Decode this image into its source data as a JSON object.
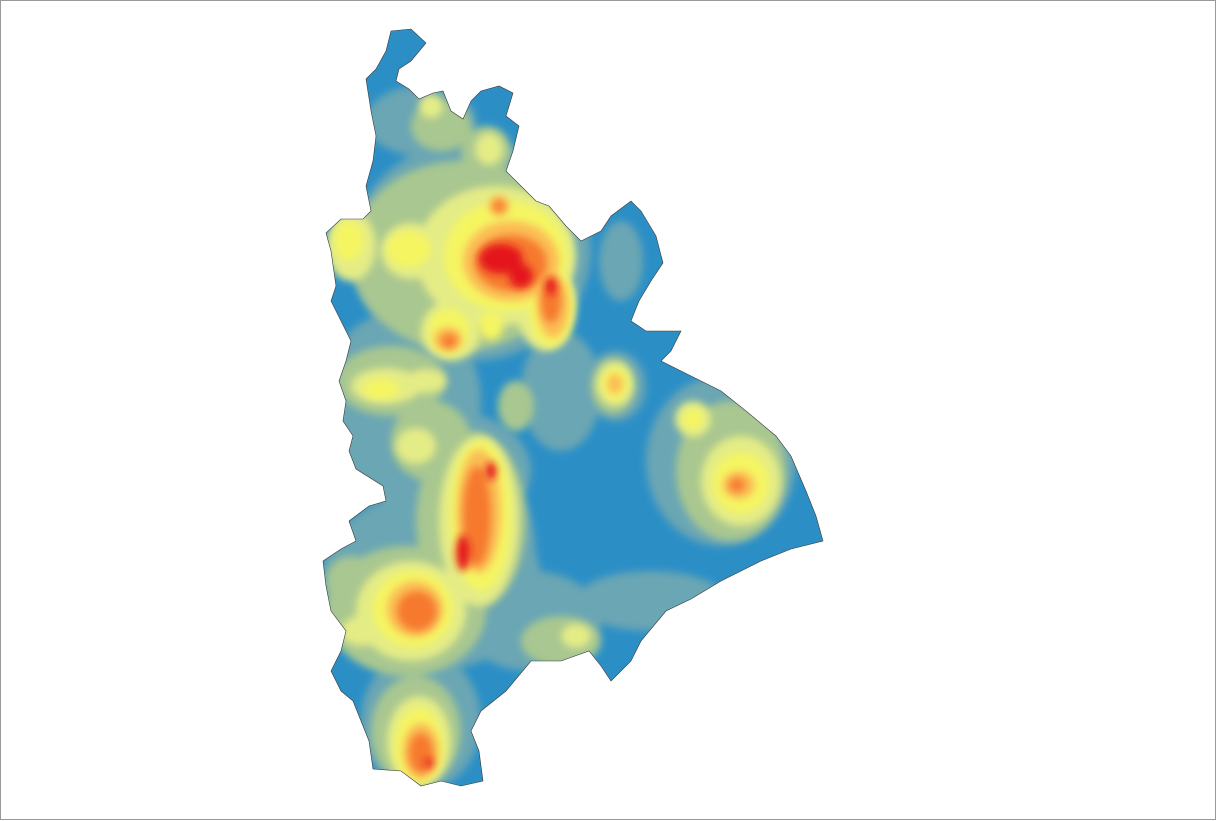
{
  "map": {
    "style": "density-heatmap",
    "palette": {
      "low": "#2b8fc6",
      "low_mid": "#6aa6b4",
      "mid": "#a9c790",
      "mid_high": "#e4ec86",
      "high": "#f5f562",
      "very_high": "#fbbd54",
      "peak_low": "#f6792d",
      "peak": "#e4161b"
    },
    "background": "#ffffff",
    "border_color": "#9a9a9a"
  }
}
